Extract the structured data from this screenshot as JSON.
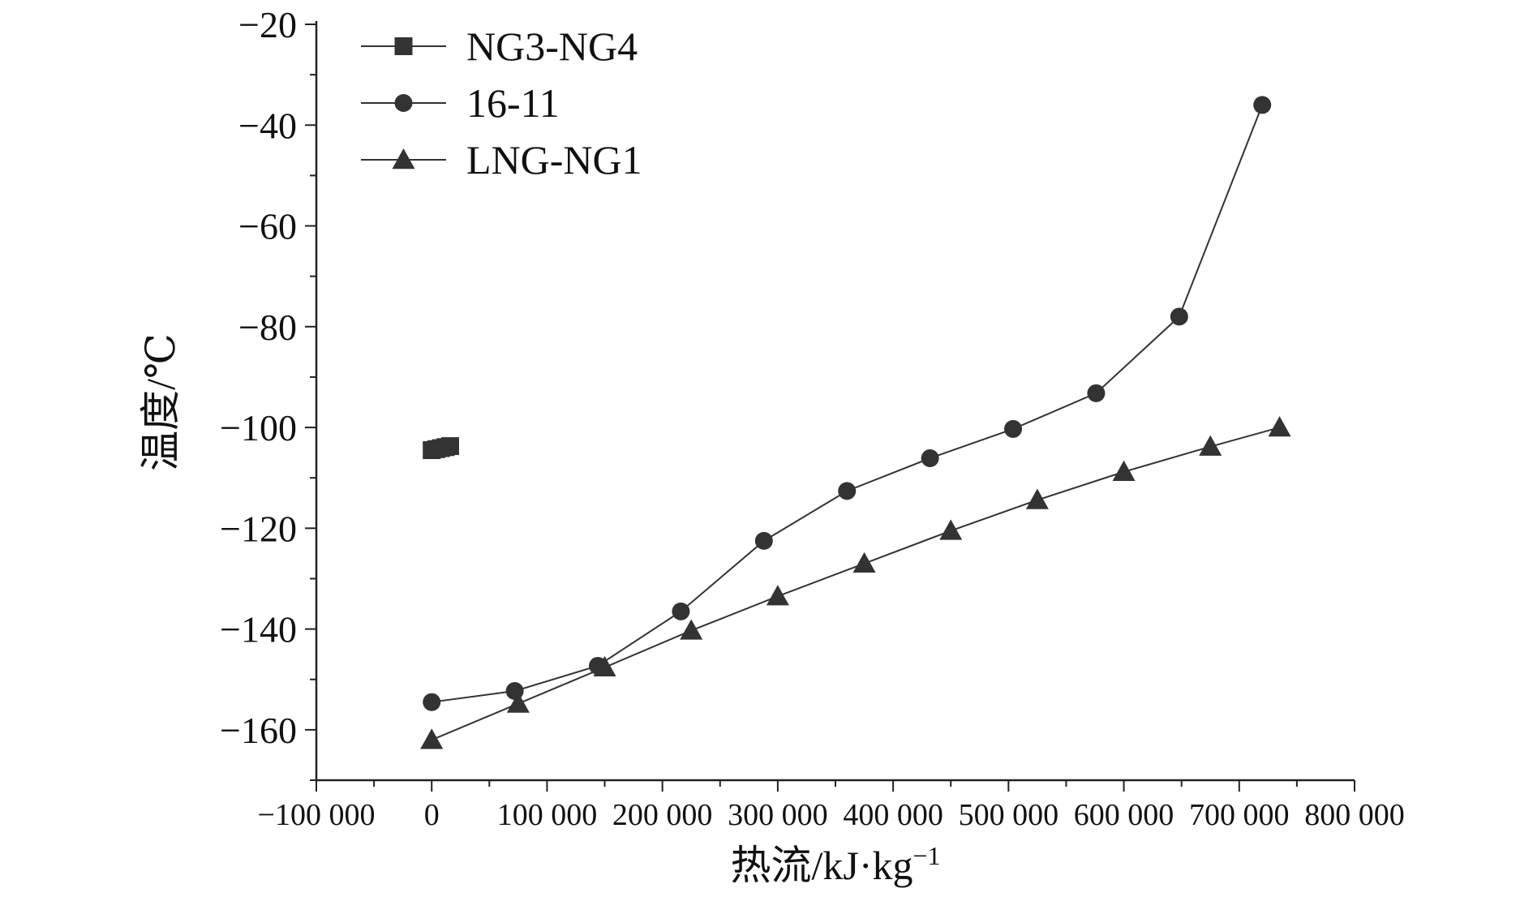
{
  "chart_data": {
    "type": "line",
    "title": "",
    "xlabel": "热流/kJ·kg",
    "xlabel_superscript": "−1",
    "ylabel": "温度/℃",
    "xlim": [
      -100000,
      800000
    ],
    "ylim": [
      -170,
      -20
    ],
    "x_ticks": [
      -100000,
      0,
      100000,
      200000,
      300000,
      400000,
      500000,
      600000,
      700000,
      800000
    ],
    "x_tick_labels": [
      "−100 000",
      "0",
      "100 000",
      "200 000",
      "300 000",
      "400 000",
      "500 000",
      "600 000",
      "700 000",
      "800 000"
    ],
    "y_ticks": [
      -160,
      -140,
      -120,
      -100,
      -80,
      -60,
      -40,
      -20
    ],
    "y_tick_labels": [
      "−160",
      "−140",
      "−120",
      "−100",
      "−80",
      "−60",
      "−40",
      "−20"
    ],
    "grid": false,
    "legend_position": "top-left",
    "series": [
      {
        "name": "NG3-NG4",
        "marker": "square",
        "color": "#333333",
        "x": [
          0,
          4000,
          8000,
          12000,
          16000
        ],
        "y": [
          -104.5,
          -104.3,
          -104.1,
          -103.9,
          -103.7
        ]
      },
      {
        "name": "16-11",
        "marker": "circle",
        "color": "#333333",
        "x": [
          0,
          72000,
          144000,
          216000,
          288000,
          360000,
          432000,
          504000,
          576000,
          648000,
          720000
        ],
        "y": [
          -154.5,
          -152.3,
          -147.3,
          -136.5,
          -122.5,
          -112.6,
          -106.1,
          -100.3,
          -93.2,
          -78.0,
          -36.0
        ]
      },
      {
        "name": "LNG-NG1",
        "marker": "triangle",
        "color": "#333333",
        "x": [
          0,
          75000,
          150000,
          225000,
          300000,
          375000,
          450000,
          525000,
          600000,
          675000,
          735000
        ],
        "y": [
          -162.0,
          -154.8,
          -147.6,
          -140.3,
          -133.5,
          -127.0,
          -120.5,
          -114.4,
          -108.8,
          -103.8,
          -100.0
        ]
      }
    ]
  }
}
